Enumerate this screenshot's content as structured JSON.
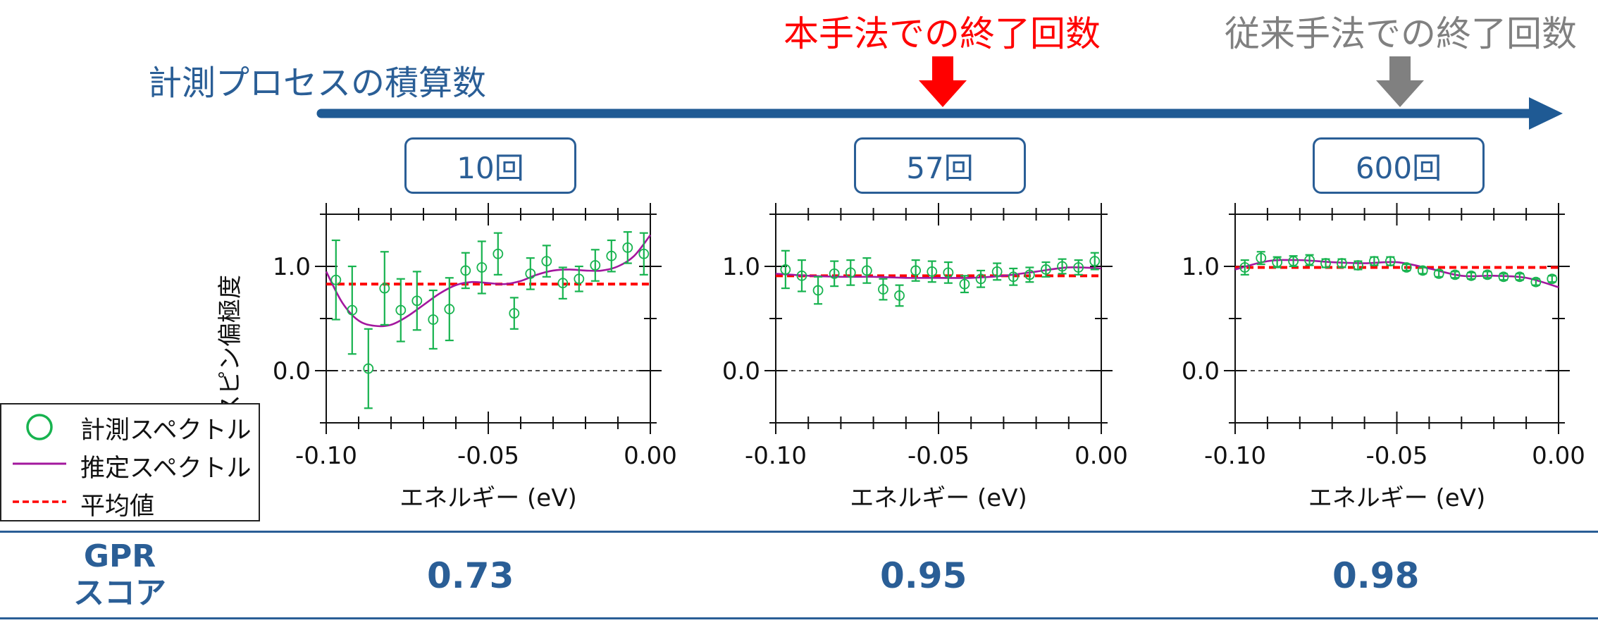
{
  "header": {
    "process_label": "計測プロセスの積算数",
    "proposed_stop": "本手法での終了回数",
    "conventional_stop": "従来手法での終了回数",
    "arrow_color": "#1f5a94",
    "proposed_color": "#ff0000",
    "conventional_color": "#808080"
  },
  "count_boxes": [
    "10回",
    "57回",
    "600回"
  ],
  "legend": {
    "measured": "計測スペクトル",
    "estimated": "推定スペクトル",
    "mean": "平均値"
  },
  "score_table": {
    "label_line1": "GPR",
    "label_line2": "スコア",
    "scores": [
      "0.73",
      "0.95",
      "0.98"
    ]
  },
  "chart_data": [
    {
      "type": "scatter",
      "panel": "10回",
      "xlabel": "エネルギー (eV)",
      "ylabel": "スピン偏極度",
      "xlim": [
        -0.1,
        0.0
      ],
      "ylim": [
        -0.5,
        1.5
      ],
      "xticks": [
        "-0.10",
        "-0.05",
        "0.00"
      ],
      "yticks": [
        "1.0",
        "0.0"
      ],
      "zero_line": 0.0,
      "mean": 0.83,
      "measured": {
        "x": [
          -0.097,
          -0.092,
          -0.087,
          -0.082,
          -0.077,
          -0.072,
          -0.067,
          -0.062,
          -0.057,
          -0.052,
          -0.047,
          -0.042,
          -0.037,
          -0.032,
          -0.027,
          -0.022,
          -0.017,
          -0.012,
          -0.007,
          -0.002
        ],
        "y": [
          0.87,
          0.58,
          0.02,
          0.79,
          0.58,
          0.67,
          0.49,
          0.59,
          0.96,
          0.99,
          1.12,
          0.55,
          0.93,
          1.05,
          0.84,
          0.88,
          1.01,
          1.1,
          1.18,
          1.12
        ],
        "err": [
          0.38,
          0.42,
          0.38,
          0.35,
          0.3,
          0.28,
          0.28,
          0.3,
          0.17,
          0.25,
          0.2,
          0.15,
          0.15,
          0.15,
          0.15,
          0.12,
          0.15,
          0.15,
          0.15,
          0.2
        ]
      },
      "estimated": {
        "x": [
          -0.1,
          -0.095,
          -0.09,
          -0.085,
          -0.08,
          -0.075,
          -0.07,
          -0.065,
          -0.06,
          -0.055,
          -0.05,
          -0.045,
          -0.04,
          -0.035,
          -0.03,
          -0.025,
          -0.02,
          -0.015,
          -0.01,
          -0.005,
          0.0
        ],
        "y": [
          0.95,
          0.65,
          0.48,
          0.43,
          0.44,
          0.52,
          0.63,
          0.74,
          0.82,
          0.85,
          0.84,
          0.83,
          0.86,
          0.92,
          0.96,
          0.97,
          0.96,
          0.96,
          1.0,
          1.1,
          1.3
        ]
      }
    },
    {
      "type": "scatter",
      "panel": "57回",
      "xlabel": "エネルギー (eV)",
      "ylabel": "",
      "xlim": [
        -0.1,
        0.0
      ],
      "ylim": [
        -0.5,
        1.5
      ],
      "xticks": [
        "-0.10",
        "-0.05",
        "0.00"
      ],
      "yticks": [
        "1.0",
        "0.0"
      ],
      "zero_line": 0.0,
      "mean": 0.91,
      "measured": {
        "x": [
          -0.097,
          -0.092,
          -0.087,
          -0.082,
          -0.077,
          -0.072,
          -0.067,
          -0.062,
          -0.057,
          -0.052,
          -0.047,
          -0.042,
          -0.037,
          -0.032,
          -0.027,
          -0.022,
          -0.017,
          -0.012,
          -0.007,
          -0.002
        ],
        "y": [
          0.97,
          0.91,
          0.77,
          0.93,
          0.94,
          0.96,
          0.78,
          0.72,
          0.96,
          0.95,
          0.94,
          0.83,
          0.88,
          0.95,
          0.9,
          0.92,
          0.97,
          1.0,
          0.99,
          1.05
        ],
        "err": [
          0.18,
          0.15,
          0.13,
          0.12,
          0.12,
          0.12,
          0.1,
          0.1,
          0.1,
          0.1,
          0.1,
          0.08,
          0.08,
          0.08,
          0.08,
          0.07,
          0.07,
          0.07,
          0.07,
          0.08
        ]
      },
      "estimated": {
        "x": [
          -0.1,
          -0.09,
          -0.08,
          -0.07,
          -0.06,
          -0.05,
          -0.04,
          -0.03,
          -0.02,
          -0.01,
          0.0
        ],
        "y": [
          0.93,
          0.91,
          0.9,
          0.9,
          0.89,
          0.89,
          0.89,
          0.91,
          0.95,
          0.99,
          0.98
        ]
      }
    },
    {
      "type": "scatter",
      "panel": "600回",
      "xlabel": "エネルギー (eV)",
      "ylabel": "",
      "xlim": [
        -0.1,
        0.0
      ],
      "ylim": [
        -0.5,
        1.5
      ],
      "xticks": [
        "-0.10",
        "-0.05",
        "0.00"
      ],
      "yticks": [
        "1.0",
        "0.0"
      ],
      "zero_line": 0.0,
      "mean": 0.99,
      "measured": {
        "x": [
          -0.097,
          -0.092,
          -0.087,
          -0.082,
          -0.077,
          -0.072,
          -0.067,
          -0.062,
          -0.057,
          -0.052,
          -0.047,
          -0.042,
          -0.037,
          -0.032,
          -0.027,
          -0.022,
          -0.017,
          -0.012,
          -0.007,
          -0.002
        ],
        "y": [
          0.99,
          1.08,
          1.04,
          1.05,
          1.06,
          1.03,
          1.03,
          1.01,
          1.05,
          1.05,
          0.99,
          0.96,
          0.93,
          0.92,
          0.91,
          0.92,
          0.9,
          0.9,
          0.85,
          0.88
        ],
        "err": [
          0.07,
          0.06,
          0.05,
          0.05,
          0.05,
          0.04,
          0.04,
          0.04,
          0.04,
          0.04,
          0.03,
          0.03,
          0.03,
          0.03,
          0.03,
          0.03,
          0.03,
          0.03,
          0.03,
          0.03
        ]
      },
      "estimated": {
        "x": [
          -0.1,
          -0.09,
          -0.08,
          -0.07,
          -0.06,
          -0.05,
          -0.04,
          -0.03,
          -0.02,
          -0.01,
          0.0
        ],
        "y": [
          0.97,
          1.05,
          1.06,
          1.04,
          1.03,
          1.04,
          0.98,
          0.91,
          0.91,
          0.89,
          0.8
        ]
      }
    }
  ]
}
